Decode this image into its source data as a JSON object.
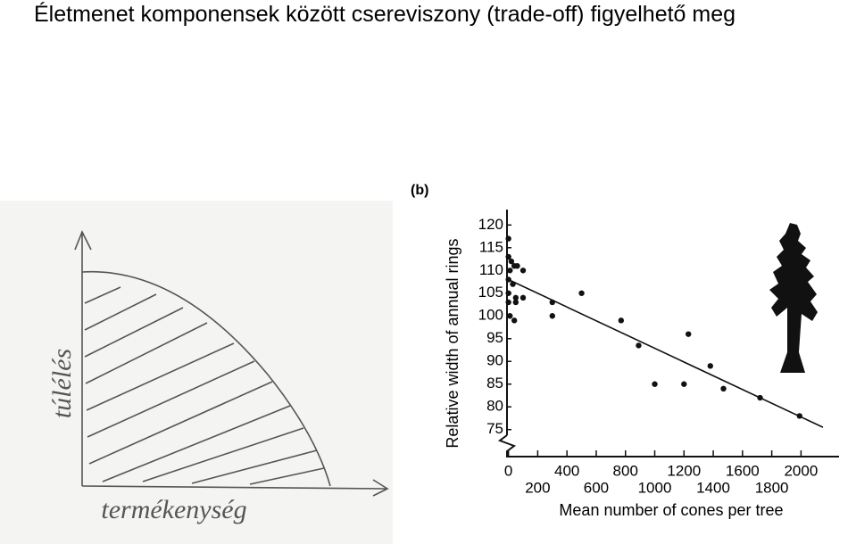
{
  "title": "Életmenet komponensek között csereviszony (trade-off) figyelhető meg",
  "sketch": {
    "x_label": "termékenység",
    "y_label": "túlélés"
  },
  "chart_data": {
    "type": "scatter",
    "panel_label": "(b)",
    "y_label": "Relative width of annual rings",
    "x_label": "Mean number of cones per tree",
    "x": [
      0,
      0,
      20,
      40,
      10,
      60,
      100,
      0,
      30,
      0,
      50,
      100,
      0,
      50,
      10,
      40,
      300,
      300,
      500,
      770,
      890,
      1000,
      1200,
      1230,
      1380,
      1470,
      1720,
      1990
    ],
    "values": [
      117,
      113,
      112,
      111,
      110,
      111,
      110,
      108,
      107,
      105,
      104,
      104,
      103,
      103,
      100,
      99,
      103,
      100,
      105,
      99,
      93.5,
      85,
      85,
      96,
      89,
      84,
      82,
      78
    ],
    "color": "#111111",
    "trendline": {
      "x": [
        0,
        2150
      ],
      "y": [
        108,
        75.5
      ]
    },
    "xlim": [
      -10,
      2260
    ],
    "ylim": [
      72,
      123
    ],
    "xticks": [
      0,
      200,
      400,
      600,
      800,
      1000,
      1200,
      1400,
      1600,
      1800,
      2000
    ],
    "yticks": [
      75,
      80,
      85,
      90,
      95,
      100,
      105,
      110,
      115,
      120
    ]
  }
}
